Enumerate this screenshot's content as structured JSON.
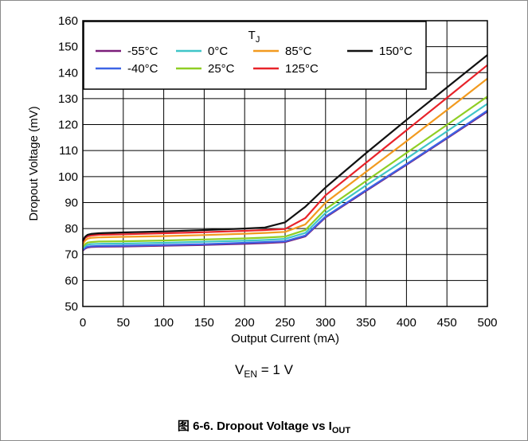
{
  "chart_data": {
    "type": "line",
    "xlabel": "Output Current (mA)",
    "ylabel": "Dropout Voltage (mV)",
    "xlim": [
      0,
      500
    ],
    "ylim": [
      50,
      160
    ],
    "x_ticks": [
      0,
      50,
      100,
      150,
      200,
      250,
      300,
      350,
      400,
      450,
      500
    ],
    "y_ticks": [
      50,
      60,
      70,
      80,
      90,
      100,
      110,
      120,
      130,
      140,
      150,
      160
    ],
    "grid": true,
    "legend_title": "TJ",
    "legend_title_main": "T",
    "legend_title_sub": "J",
    "legend_placement": "top-inside",
    "x": [
      0,
      3,
      6,
      10,
      20,
      50,
      100,
      150,
      200,
      225,
      250,
      275,
      300,
      350,
      400,
      450,
      500
    ],
    "series": [
      {
        "name": "-55°C",
        "color": "#7b1e7a",
        "values": [
          71.5,
          72.3,
          72.7,
          72.9,
          73.0,
          73.1,
          73.4,
          73.7,
          74.1,
          74.4,
          74.8,
          77.0,
          84.3,
          94.5,
          104.5,
          114.7,
          125.0
        ]
      },
      {
        "name": "-40°C",
        "color": "#3c64e6",
        "values": [
          71.8,
          72.6,
          73.0,
          73.2,
          73.3,
          73.4,
          73.7,
          74.0,
          74.5,
          74.8,
          75.1,
          77.3,
          84.6,
          94.8,
          104.8,
          115.0,
          125.4
        ]
      },
      {
        "name": "0°C",
        "color": "#3fc5c8",
        "values": [
          72.4,
          73.3,
          73.8,
          74.0,
          74.1,
          74.2,
          74.5,
          74.9,
          75.3,
          75.6,
          76.0,
          78.3,
          86.0,
          96.6,
          106.9,
          117.4,
          128.0
        ]
      },
      {
        "name": "25°C",
        "color": "#8fce24",
        "values": [
          73.0,
          74.0,
          74.6,
          74.8,
          75.0,
          75.1,
          75.4,
          75.8,
          76.2,
          76.5,
          76.9,
          79.4,
          87.4,
          98.3,
          109.1,
          119.9,
          130.8
        ]
      },
      {
        "name": "85°C",
        "color": "#f29a1f",
        "values": [
          74.0,
          75.4,
          76.1,
          76.4,
          76.6,
          76.8,
          77.1,
          77.5,
          78.0,
          78.3,
          78.7,
          81.6,
          90.0,
          101.8,
          113.6,
          125.6,
          137.7
        ]
      },
      {
        "name": "125°C",
        "color": "#e8232a",
        "values": [
          74.9,
          76.4,
          77.0,
          77.3,
          77.6,
          77.8,
          78.2,
          78.6,
          79.1,
          79.4,
          79.8,
          84.0,
          92.8,
          105.3,
          117.8,
          130.3,
          142.9
        ]
      },
      {
        "name": "150°C",
        "color": "#111111",
        "values": [
          75.3,
          76.9,
          77.6,
          77.9,
          78.2,
          78.5,
          78.9,
          79.4,
          80.0,
          80.4,
          82.4,
          88.4,
          95.8,
          109.0,
          121.8,
          134.3,
          146.8
        ]
      }
    ]
  },
  "condition": {
    "main": "V",
    "sub": "EN",
    "rest": " = 1 V"
  },
  "caption": {
    "prefix": "图 6-6. Dropout Voltage vs I",
    "sub": "OUT"
  }
}
